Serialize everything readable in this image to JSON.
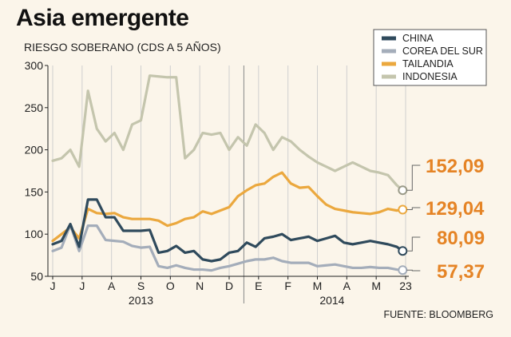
{
  "title": "Asia emergente",
  "subtitle": "RIESGO SOBERANO (CDS A 5 AÑOS)",
  "source": "FUENTE: BLOOMBERG",
  "colors": {
    "china": "#2f4a5c",
    "korea": "#a4adba",
    "thailand": "#eba83e",
    "indonesia": "#c4c5ad",
    "end_label": "#e58426",
    "background": "#fbf5ea"
  },
  "chart_data": {
    "type": "line",
    "title": "Asia emergente",
    "subtitle": "RIESGO SOBERANO (CDS A 5 AÑOS)",
    "xlabel": "",
    "ylabel": "",
    "ylim": [
      50,
      300
    ],
    "yticks": [
      50,
      100,
      150,
      200,
      250,
      300
    ],
    "grid": "vertical",
    "legend": "top-right",
    "x_months": [
      "J",
      "J",
      "A",
      "S",
      "O",
      "N",
      "D",
      "E",
      "F",
      "M",
      "A",
      "M",
      "23"
    ],
    "x_years": [
      {
        "label": "2013",
        "start": 0,
        "end": 6
      },
      {
        "label": "2014",
        "start": 7,
        "end": 12
      }
    ],
    "x": [
      0,
      0.3,
      0.6,
      0.9,
      1.2,
      1.5,
      1.8,
      2.1,
      2.4,
      2.7,
      3.0,
      3.3,
      3.6,
      3.9,
      4.2,
      4.5,
      4.8,
      5.1,
      5.4,
      5.7,
      6.0,
      6.3,
      6.6,
      6.9,
      7.2,
      7.5,
      7.8,
      8.1,
      8.4,
      8.7,
      9.0,
      9.3,
      9.6,
      9.9,
      10.2,
      10.5,
      10.8,
      11.1,
      11.4,
      11.7,
      11.9
    ],
    "series": [
      {
        "name": "CHINA",
        "key": "china",
        "values": [
          88,
          92,
          112,
          85,
          141,
          141,
          120,
          120,
          104,
          104,
          104,
          105,
          78,
          80,
          86,
          78,
          80,
          70,
          68,
          70,
          78,
          80,
          90,
          85,
          95,
          97,
          100,
          93,
          95,
          97,
          92,
          95,
          98,
          90,
          88,
          90,
          92,
          90,
          88,
          85,
          80.09
        ]
      },
      {
        "name": "COREA DEL SUR",
        "key": "korea",
        "values": [
          80,
          84,
          111,
          80,
          110,
          110,
          93,
          92,
          91,
          86,
          84,
          85,
          62,
          60,
          63,
          60,
          58,
          58,
          57,
          60,
          62,
          65,
          68,
          70,
          70,
          72,
          68,
          66,
          66,
          66,
          62,
          63,
          64,
          62,
          60,
          60,
          61,
          60,
          60,
          58,
          57.37
        ]
      },
      {
        "name": "TAILANDIA",
        "key": "thailand",
        "values": [
          92,
          100,
          108,
          95,
          130,
          125,
          124,
          125,
          120,
          118,
          118,
          118,
          116,
          110,
          113,
          118,
          120,
          127,
          124,
          128,
          132,
          145,
          152,
          158,
          160,
          168,
          173,
          160,
          155,
          156,
          145,
          135,
          130,
          128,
          126,
          125,
          124,
          126,
          130,
          128,
          129.04
        ]
      },
      {
        "name": "INDONESIA",
        "key": "indonesia",
        "values": [
          187,
          190,
          200,
          180,
          270,
          225,
          210,
          220,
          200,
          230,
          235,
          288,
          287,
          286,
          286,
          190,
          200,
          220,
          218,
          220,
          200,
          215,
          205,
          230,
          220,
          200,
          215,
          210,
          200,
          192,
          185,
          180,
          175,
          180,
          185,
          180,
          175,
          173,
          170,
          158,
          152.09
        ]
      }
    ]
  },
  "end_labels": [
    "152,09",
    "129,04",
    "80,09",
    "57,37"
  ]
}
